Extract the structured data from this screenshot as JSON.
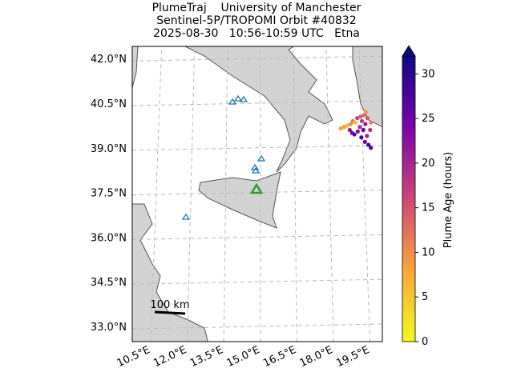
{
  "title_lines": [
    "PlumeTraj    University of Manchester",
    "Sentinel-5P/TROPOMI Orbit #40832",
    "2025-08-30   10:56-10:59 UTC   Etna"
  ],
  "lat_ticks": [
    {
      "value": 42.0,
      "label": "42.0°N"
    },
    {
      "value": 40.5,
      "label": "40.5°N"
    },
    {
      "value": 39.0,
      "label": "39.0°N"
    },
    {
      "value": 37.5,
      "label": "37.5°N"
    },
    {
      "value": 36.0,
      "label": "36.0°N"
    },
    {
      "value": 34.5,
      "label": "34.5°N"
    },
    {
      "value": 33.0,
      "label": "33.0°N"
    }
  ],
  "lon_ticks": [
    {
      "value": 10.5,
      "label": "10.5°E"
    },
    {
      "value": 12.0,
      "label": "12.0°E"
    },
    {
      "value": 13.5,
      "label": "13.5°E"
    },
    {
      "value": 15.0,
      "label": "15.0°E"
    },
    {
      "value": 16.5,
      "label": "16.5°E"
    },
    {
      "value": 18.0,
      "label": "18.0°E"
    },
    {
      "value": 19.5,
      "label": "19.5°E"
    }
  ],
  "colorbar": {
    "label": "Plume Age (hours)",
    "range": [
      0,
      32
    ],
    "ticks": [
      0,
      5,
      10,
      15,
      20,
      25,
      30
    ],
    "colormap": [
      "#f0f921",
      "#fca636",
      "#cc4778",
      "#7e03a8",
      "#0d0887"
    ]
  },
  "scale_bar": {
    "label": "100 km"
  },
  "plume": {
    "lon": [
      18.55,
      18.7,
      18.85,
      19.0,
      19.1,
      19.2,
      18.95,
      19.05,
      19.15,
      19.3,
      19.4,
      19.5,
      19.6,
      19.7,
      19.75,
      19.65,
      19.55,
      19.45,
      19.6,
      19.75,
      19.85,
      19.7,
      19.85,
      19.9,
      19.3,
      19.45
    ],
    "lat": [
      39.65,
      39.7,
      39.75,
      39.8,
      39.9,
      39.85,
      39.6,
      39.5,
      39.45,
      39.55,
      39.7,
      39.9,
      40.1,
      40.2,
      40.0,
      39.8,
      39.6,
      39.35,
      39.2,
      39.1,
      39.0,
      39.4,
      39.6,
      39.85,
      40.0,
      40.05
    ],
    "age": [
      8,
      9,
      7,
      10,
      12,
      6,
      22,
      25,
      27,
      24,
      20,
      18,
      13,
      9,
      15,
      22,
      26,
      28,
      24,
      29,
      27,
      21,
      19,
      11,
      16,
      14
    ]
  }
}
